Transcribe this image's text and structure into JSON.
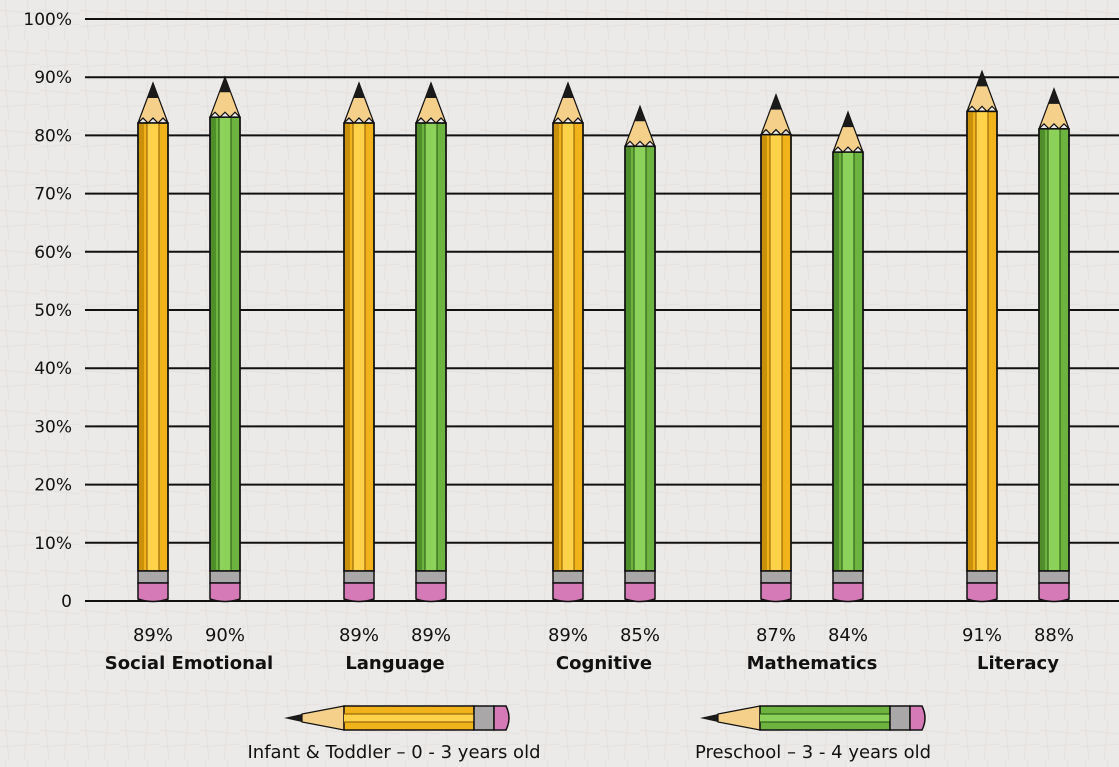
{
  "chart_data": {
    "type": "bar",
    "title": "",
    "xlabel": "",
    "ylabel": "",
    "ylim": [
      0,
      100
    ],
    "yticks": [
      {
        "value": 0,
        "label": "0"
      },
      {
        "value": 10,
        "label": "10%"
      },
      {
        "value": 20,
        "label": "20%"
      },
      {
        "value": 30,
        "label": "30%"
      },
      {
        "value": 40,
        "label": "40%"
      },
      {
        "value": 50,
        "label": "50%"
      },
      {
        "value": 60,
        "label": "60%"
      },
      {
        "value": 70,
        "label": "70%"
      },
      {
        "value": 80,
        "label": "80%"
      },
      {
        "value": 90,
        "label": "90%"
      },
      {
        "value": 100,
        "label": "100%"
      }
    ],
    "grid": true,
    "legend_placement": "bottom",
    "categories": [
      "Social Emotional",
      "Language",
      "Cognitive",
      "Mathematics",
      "Literacy"
    ],
    "series": [
      {
        "name": "Infant & Toddler – 0 - 3 years old",
        "color": "#f1b31c",
        "values": [
          89,
          89,
          89,
          87,
          91
        ],
        "value_labels": [
          "89%",
          "89%",
          "89%",
          "87%",
          "91%"
        ]
      },
      {
        "name": "Preschool – 3 - 4 years old",
        "color": "#6cb33f",
        "values": [
          90,
          89,
          85,
          84,
          88
        ],
        "value_labels": [
          "90%",
          "89%",
          "85%",
          "84%",
          "88%"
        ]
      }
    ]
  }
}
